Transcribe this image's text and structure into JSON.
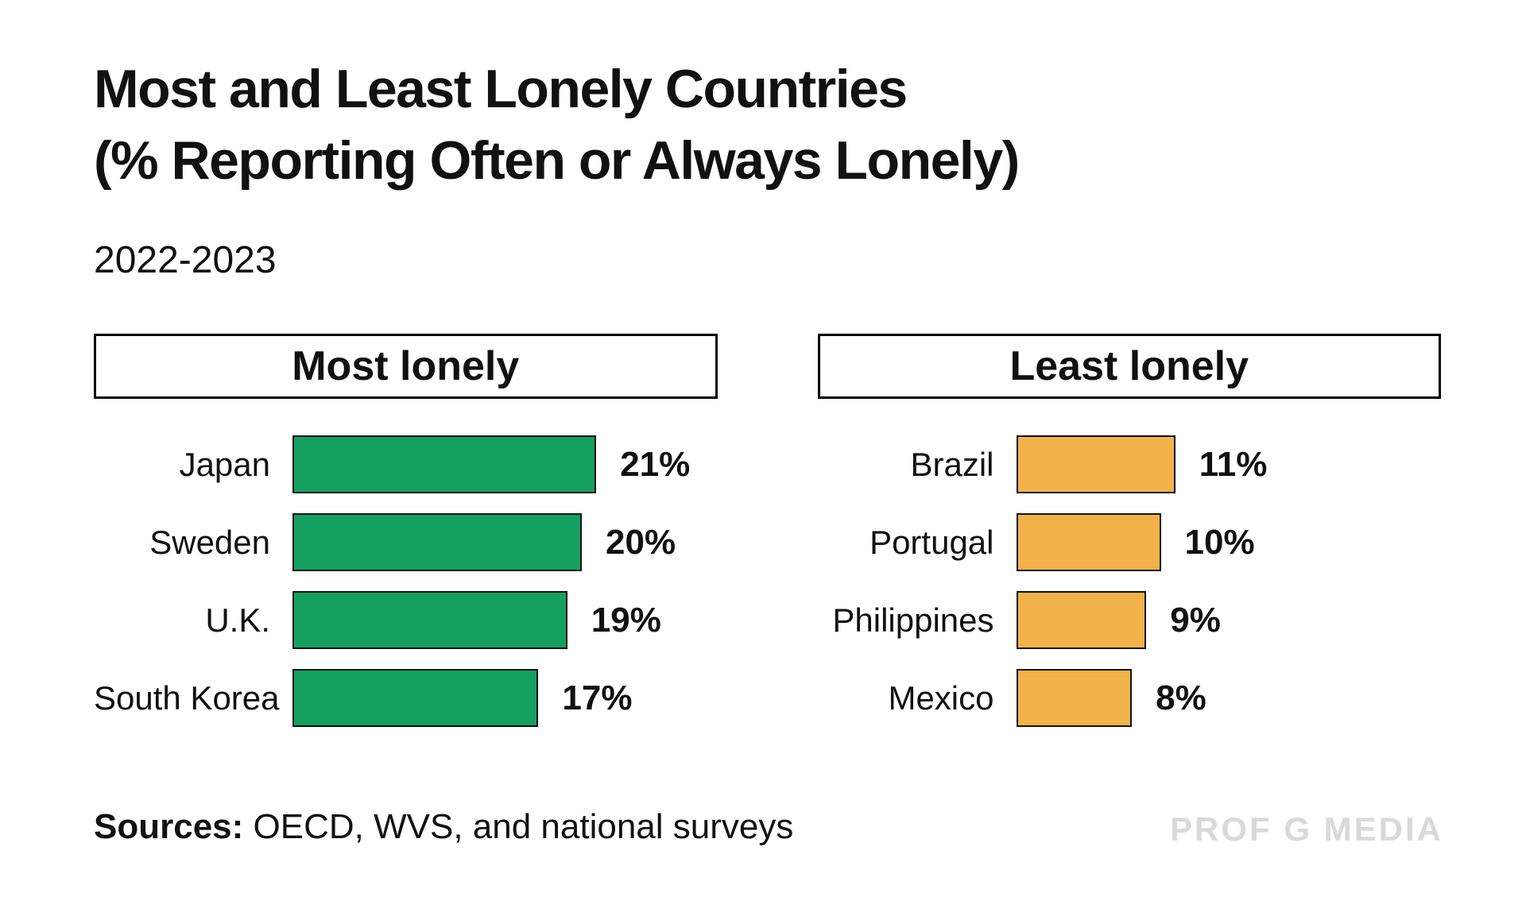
{
  "page": {
    "title_line1": "Most and Least Lonely Countries",
    "title_line2": "(% Reporting Often or Always Lonely)",
    "subtitle": "2022-2023",
    "sources_label": "Sources:",
    "sources_text": " OECD, WVS, and national surveys",
    "watermark": "PROF G MEDIA"
  },
  "colors": {
    "most_lonely_bar": "#14A061",
    "least_lonely_bar": "#F2B24A",
    "bar_border": "#111111",
    "text": "#111111",
    "watermark": "#D9D9D9"
  },
  "chart_data": [
    {
      "type": "bar",
      "orientation": "horizontal",
      "title": "Most lonely",
      "categories": [
        "Japan",
        "Sweden",
        "U.K.",
        "South Korea"
      ],
      "values": [
        21,
        20,
        19,
        17
      ],
      "unit": "%",
      "color": "#14A061",
      "xlim": [
        0,
        25
      ],
      "grid": false,
      "legend": "none"
    },
    {
      "type": "bar",
      "orientation": "horizontal",
      "title": "Least lonely",
      "categories": [
        "Brazil",
        "Portugal",
        "Philippines",
        "Mexico"
      ],
      "values": [
        11,
        10,
        9,
        8
      ],
      "unit": "%",
      "color": "#F2B24A",
      "xlim": [
        0,
        25
      ],
      "grid": false,
      "legend": "none"
    }
  ]
}
